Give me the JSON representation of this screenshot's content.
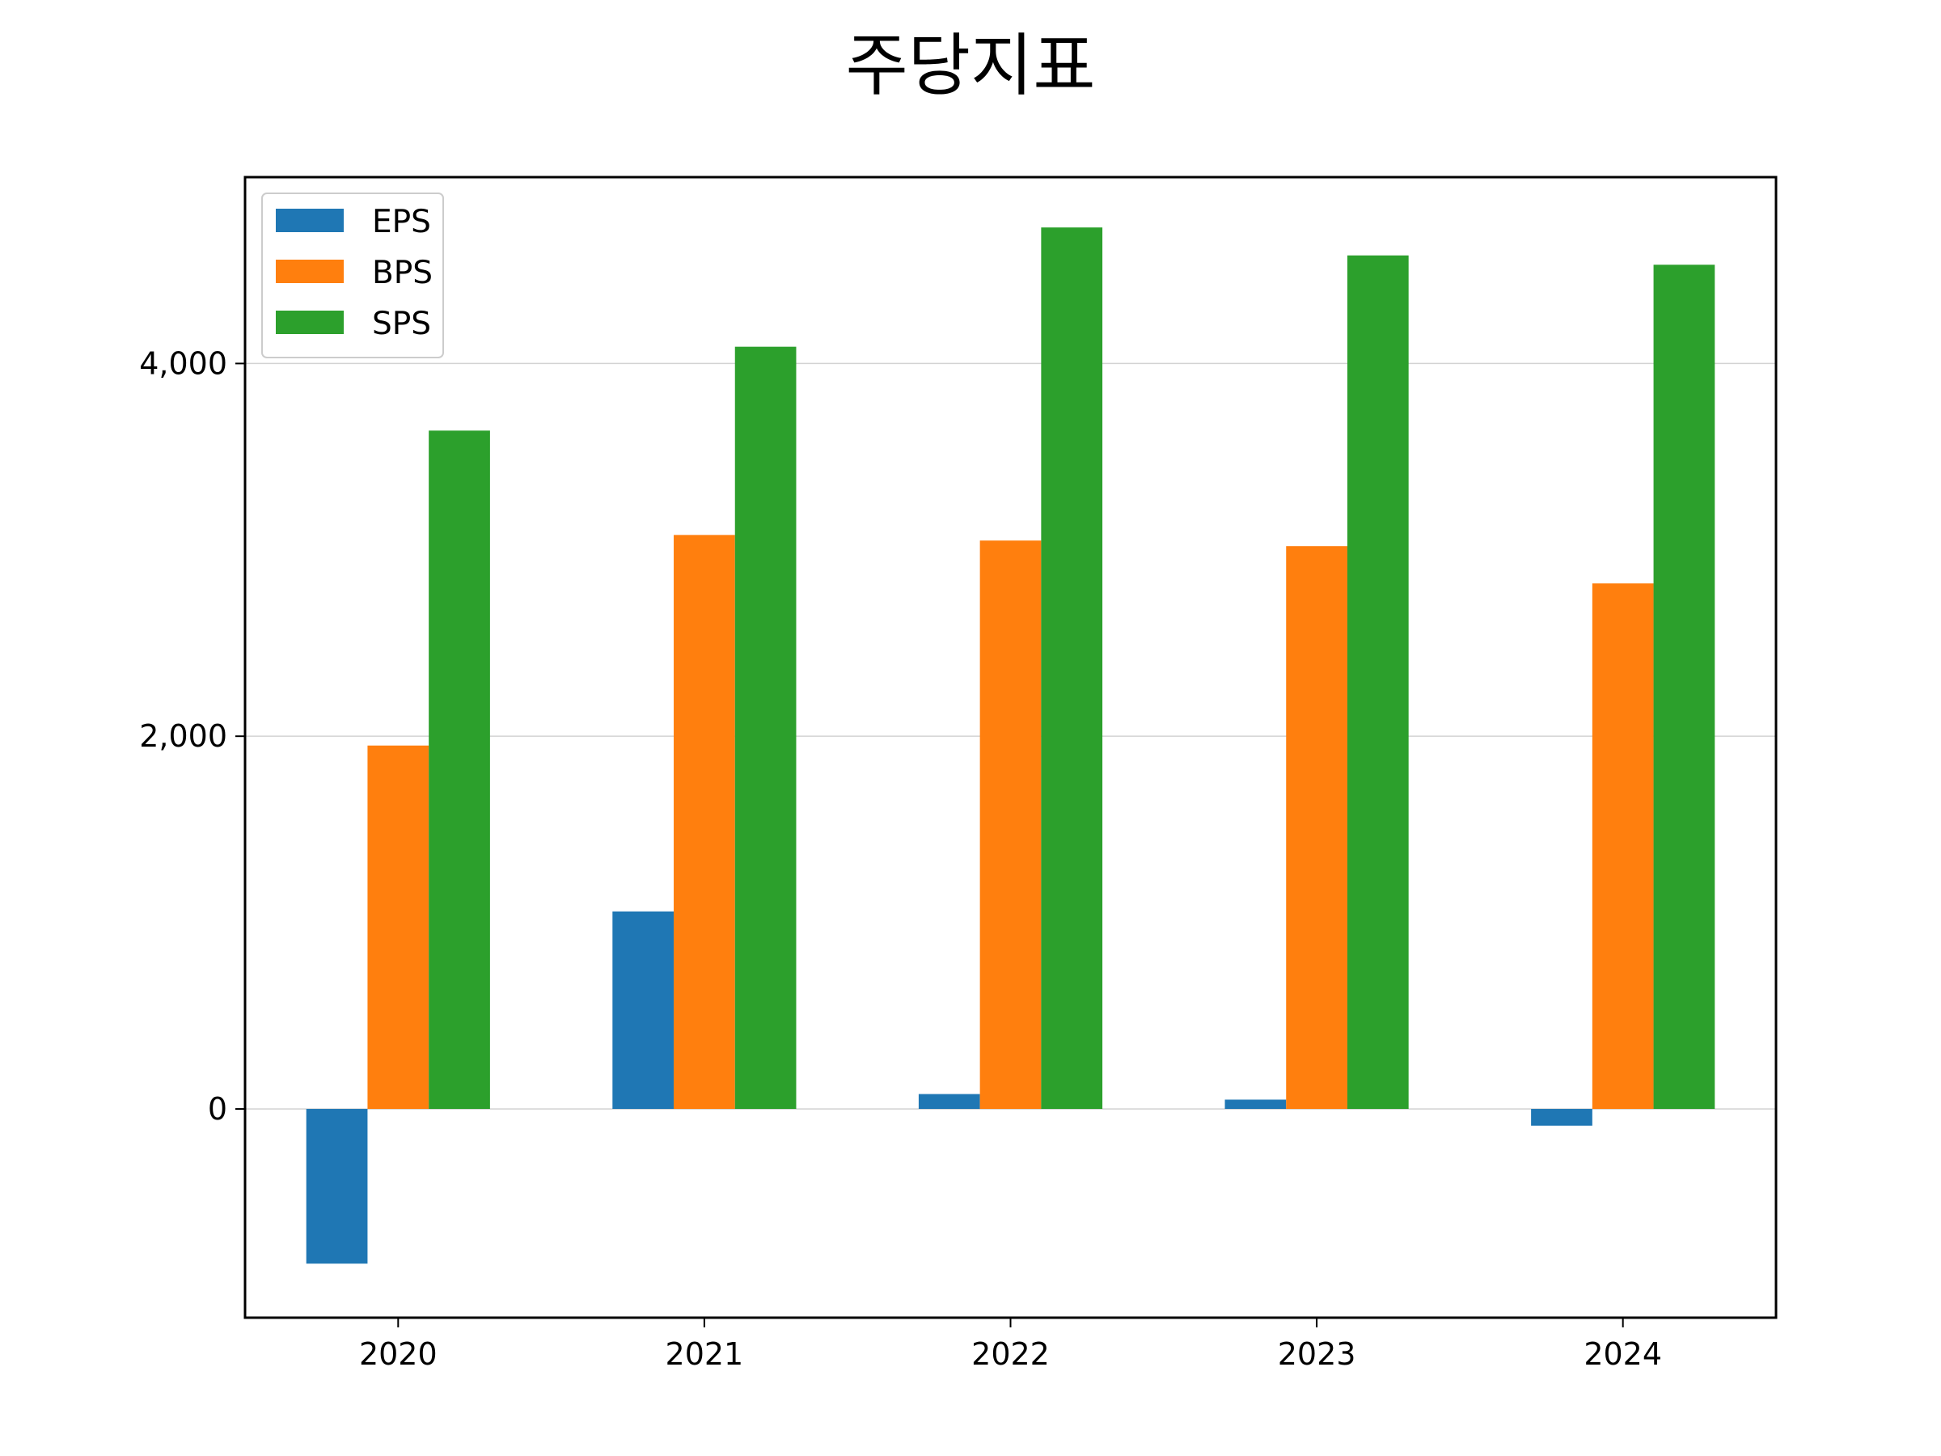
{
  "chart_data": {
    "type": "bar",
    "title": "주당지표",
    "categories": [
      "2020",
      "2021",
      "2022",
      "2023",
      "2024"
    ],
    "series": [
      {
        "name": "EPS",
        "color": "#1f77b4",
        "values": [
          -830,
          1060,
          80,
          50,
          -90
        ]
      },
      {
        "name": "BPS",
        "color": "#ff7f0e",
        "values": [
          1950,
          3080,
          3050,
          3020,
          2820
        ]
      },
      {
        "name": "SPS",
        "color": "#2ca02c",
        "values": [
          3640,
          4090,
          4730,
          4580,
          4530
        ]
      }
    ],
    "yticks": [
      0,
      2000,
      4000
    ],
    "ytick_labels": [
      "0",
      "2,000",
      "4,000"
    ],
    "ylim": [
      -1120,
      5000
    ],
    "grid": "horizontal",
    "legend_position": "top-left",
    "xlabel": "",
    "ylabel": ""
  }
}
